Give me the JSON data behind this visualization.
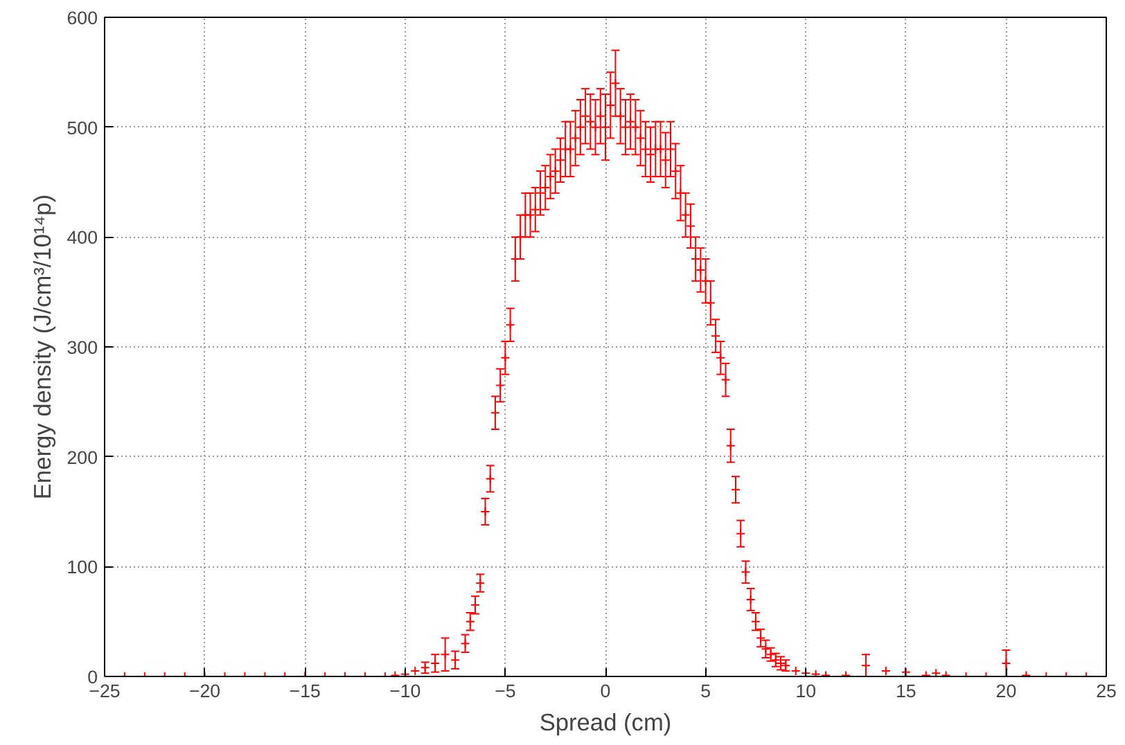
{
  "chart_data": {
    "type": "scatter",
    "xlabel": "Spread (cm)",
    "ylabel": "Energy density (J/cm³/10¹⁴p)",
    "x": [
      -24,
      -23,
      -22,
      -21,
      -20,
      -19,
      -18,
      -17,
      -16,
      -15,
      -14,
      -13,
      -12,
      -11,
      -10.5,
      -10,
      -9.5,
      -9,
      -8.5,
      -8,
      -7.5,
      -7,
      -6.75,
      -6.5,
      -6.25,
      -6,
      -5.75,
      -5.5,
      -5.25,
      -5,
      -4.75,
      -4.5,
      -4.25,
      -4,
      -3.75,
      -3.5,
      -3.25,
      -3,
      -2.75,
      -2.5,
      -2.25,
      -2,
      -1.75,
      -1.5,
      -1.25,
      -1,
      -0.75,
      -0.5,
      -0.25,
      0,
      0.25,
      0.5,
      0.75,
      1,
      1.25,
      1.5,
      1.75,
      2,
      2.25,
      2.5,
      2.75,
      3,
      3.25,
      3.5,
      3.75,
      4,
      4.25,
      4.5,
      4.75,
      5,
      5.25,
      5.5,
      5.75,
      6,
      6.25,
      6.5,
      6.75,
      7,
      7.25,
      7.5,
      7.75,
      8,
      8.25,
      8.5,
      8.75,
      9,
      9.5,
      10,
      10.5,
      11,
      12,
      13,
      14,
      15,
      16,
      16.5,
      17,
      18,
      19,
      20,
      21,
      22,
      23,
      24
    ],
    "series": [
      {
        "color": "#ff0000",
        "values": [
          0,
          0,
          0,
          0,
          0,
          0,
          0,
          0,
          0,
          0,
          0,
          0,
          0,
          0,
          1,
          2,
          5,
          8,
          12,
          20,
          15,
          30,
          50,
          65,
          85,
          150,
          180,
          240,
          265,
          290,
          320,
          380,
          400,
          420,
          420,
          425,
          440,
          445,
          455,
          460,
          470,
          480,
          480,
          490,
          500,
          510,
          505,
          500,
          510,
          500,
          520,
          540,
          510,
          500,
          505,
          500,
          490,
          480,
          475,
          480,
          480,
          470,
          480,
          460,
          440,
          420,
          410,
          380,
          370,
          360,
          340,
          310,
          290,
          270,
          210,
          170,
          130,
          95,
          70,
          50,
          35,
          25,
          20,
          15,
          12,
          10,
          5,
          3,
          2,
          1,
          1,
          10,
          5,
          4,
          1,
          3,
          1,
          0,
          0,
          12,
          1,
          0,
          0,
          0
        ],
        "errors": [
          null,
          null,
          null,
          null,
          null,
          null,
          null,
          null,
          null,
          null,
          null,
          null,
          null,
          null,
          null,
          null,
          null,
          5,
          8,
          15,
          8,
          8,
          8,
          8,
          8,
          12,
          12,
          15,
          15,
          15,
          15,
          20,
          20,
          20,
          20,
          20,
          20,
          20,
          20,
          20,
          20,
          25,
          25,
          25,
          25,
          25,
          25,
          25,
          25,
          30,
          30,
          30,
          25,
          25,
          25,
          25,
          25,
          25,
          25,
          25,
          25,
          25,
          25,
          25,
          25,
          20,
          20,
          20,
          20,
          20,
          20,
          15,
          15,
          15,
          15,
          12,
          12,
          10,
          10,
          8,
          8,
          8,
          6,
          6,
          6,
          5,
          null,
          null,
          null,
          null,
          null,
          10,
          null,
          null,
          null,
          null,
          null,
          null,
          null,
          12,
          null,
          null,
          null,
          null
        ]
      }
    ],
    "xlim": [
      -25,
      25
    ],
    "ylim": [
      0,
      600
    ],
    "xticks": [
      -25,
      -20,
      -15,
      -10,
      -5,
      0,
      5,
      10,
      15,
      20,
      25
    ],
    "yticks": [
      0,
      100,
      200,
      300,
      400,
      500,
      600
    ],
    "grid": true,
    "marker": "cross"
  }
}
